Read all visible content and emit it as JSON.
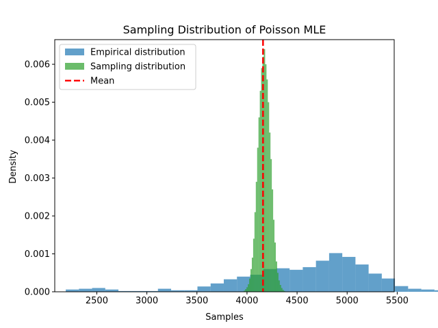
{
  "chart_data": {
    "type": "bar",
    "title": "Sampling Distribution of Poisson MLE",
    "xlabel": "Samples",
    "ylabel": "Density",
    "xlim": [
      2080,
      5470
    ],
    "ylim": [
      0,
      0.00665
    ],
    "xticks": [
      2500,
      3000,
      3500,
      4000,
      4500,
      5000,
      5500
    ],
    "xtick_labels": [
      "2500",
      "3000",
      "3500",
      "4000",
      "4500",
      "5000",
      "5500"
    ],
    "yticks": [
      0,
      0.001,
      0.002,
      0.003,
      0.004,
      0.005,
      0.006
    ],
    "ytick_labels": [
      "0.000",
      "0.001",
      "0.002",
      "0.003",
      "0.004",
      "0.005",
      "0.006"
    ],
    "grid": false,
    "legend_position": "top-left",
    "series": [
      {
        "name": "Empirical distribution",
        "kind": "histogram",
        "color": "#1f77b4",
        "alpha": 0.7,
        "bin_start": 2190,
        "bin_width": 131.5,
        "values": [
          6e-05,
          8e-05,
          0.0001,
          6e-05,
          2e-05,
          2e-05,
          2e-05,
          8e-05,
          4e-05,
          4e-05,
          0.00014,
          0.00022,
          0.00033,
          0.0004,
          0.00045,
          0.0006,
          0.00062,
          0.00058,
          0.00065,
          0.00082,
          0.00102,
          0.00092,
          0.00072,
          0.00048,
          0.00035,
          0.00015,
          8e-05,
          6e-05,
          4e-05,
          1e-05
        ]
      },
      {
        "name": "Sampling distribution",
        "kind": "histogram",
        "color": "#2ca02c",
        "alpha": 0.7,
        "bin_start": 3955,
        "bin_width": 13.3,
        "values": [
          1e-05,
          3e-05,
          7e-05,
          0.00012,
          0.0002,
          0.00035,
          0.0006,
          0.0009,
          0.0014,
          0.0021,
          0.0029,
          0.0038,
          0.0046,
          0.0053,
          0.0059,
          0.0062,
          0.0064,
          0.006,
          0.0056,
          0.005,
          0.0042,
          0.0035,
          0.0027,
          0.0019,
          0.0013,
          0.0008,
          0.0005,
          0.0003,
          0.00018,
          0.0001,
          5e-05,
          2e-05
        ]
      },
      {
        "name": "Mean",
        "kind": "vline",
        "color": "#ff0000",
        "x": 4160
      }
    ]
  }
}
